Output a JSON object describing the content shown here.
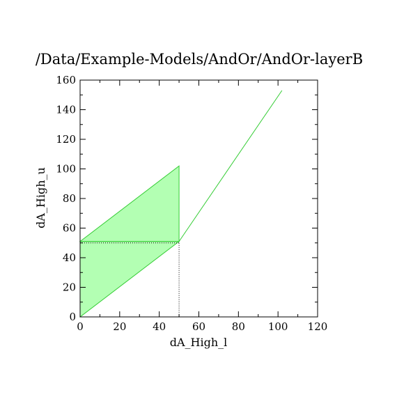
{
  "chart_data": {
    "type": "area",
    "title": "/Data/Example-Models/AndOr/AndOr-layerB",
    "xlabel": "dA_High_l",
    "ylabel": "dA_High_u",
    "xlim": [
      0,
      120
    ],
    "ylim": [
      0,
      160
    ],
    "xticks": [
      "0",
      "20",
      "40",
      "60",
      "80",
      "100",
      "120"
    ],
    "yticks": [
      "0",
      "20",
      "40",
      "60",
      "80",
      "100",
      "120",
      "140",
      "160"
    ],
    "grid": false,
    "colors": {
      "fill": "#b3ffb3",
      "line": "#33cc33",
      "guide": "#000000"
    },
    "series": [
      {
        "role": "region-upper",
        "x": [
          0,
          50,
          50,
          0
        ],
        "y": [
          51,
          102,
          51,
          51
        ]
      },
      {
        "role": "region-lower",
        "x": [
          0,
          50,
          0
        ],
        "y": [
          0,
          51,
          51
        ]
      },
      {
        "role": "line",
        "x": [
          50,
          102
        ],
        "y": [
          51,
          153
        ]
      }
    ],
    "guides": {
      "x": 50,
      "y": 50
    }
  }
}
